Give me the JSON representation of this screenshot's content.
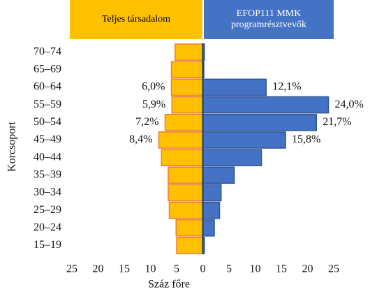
{
  "chart_data": {
    "type": "pyramid",
    "x_label": "Száz főre",
    "y_label": "Korcsoport",
    "categories": [
      "70–74",
      "65–69",
      "60–64",
      "55–59",
      "50–54",
      "45–49",
      "40–44",
      "35–39",
      "30–34",
      "25–29",
      "20–24",
      "15–19"
    ],
    "series": [
      {
        "name": "Teljes társadalom",
        "color": "#FFC000",
        "edge": "#ED7D31",
        "values": [
          5.3,
          6.0,
          6.0,
          5.9,
          7.2,
          8.4,
          7.9,
          6.6,
          6.6,
          6.4,
          5.1,
          5.0
        ],
        "value_labels": [
          null,
          null,
          "6,0%",
          "5,9%",
          "7,2%",
          "8,4%",
          null,
          null,
          null,
          null,
          null,
          null
        ]
      },
      {
        "name": "EFOP111 MMK programrésztvevők",
        "color": "#4472C4",
        "edge": "#2F5597",
        "values": [
          0.3,
          0.2,
          12.1,
          24.0,
          21.7,
          15.8,
          11.2,
          6.0,
          3.5,
          3.2,
          2.2,
          0.3
        ],
        "value_labels": [
          null,
          null,
          "12,1%",
          "24,0%",
          "21,7%",
          "15,8%",
          null,
          null,
          null,
          null,
          null,
          null
        ]
      }
    ],
    "xlim": [
      -25,
      25
    ],
    "xticks": [
      {
        "value": -25,
        "label": "25"
      },
      {
        "value": -20,
        "label": "20"
      },
      {
        "value": -15,
        "label": "15"
      },
      {
        "value": -10,
        "label": "10"
      },
      {
        "value": -5,
        "label": "5"
      },
      0,
      5,
      10,
      15,
      20,
      25
    ]
  }
}
